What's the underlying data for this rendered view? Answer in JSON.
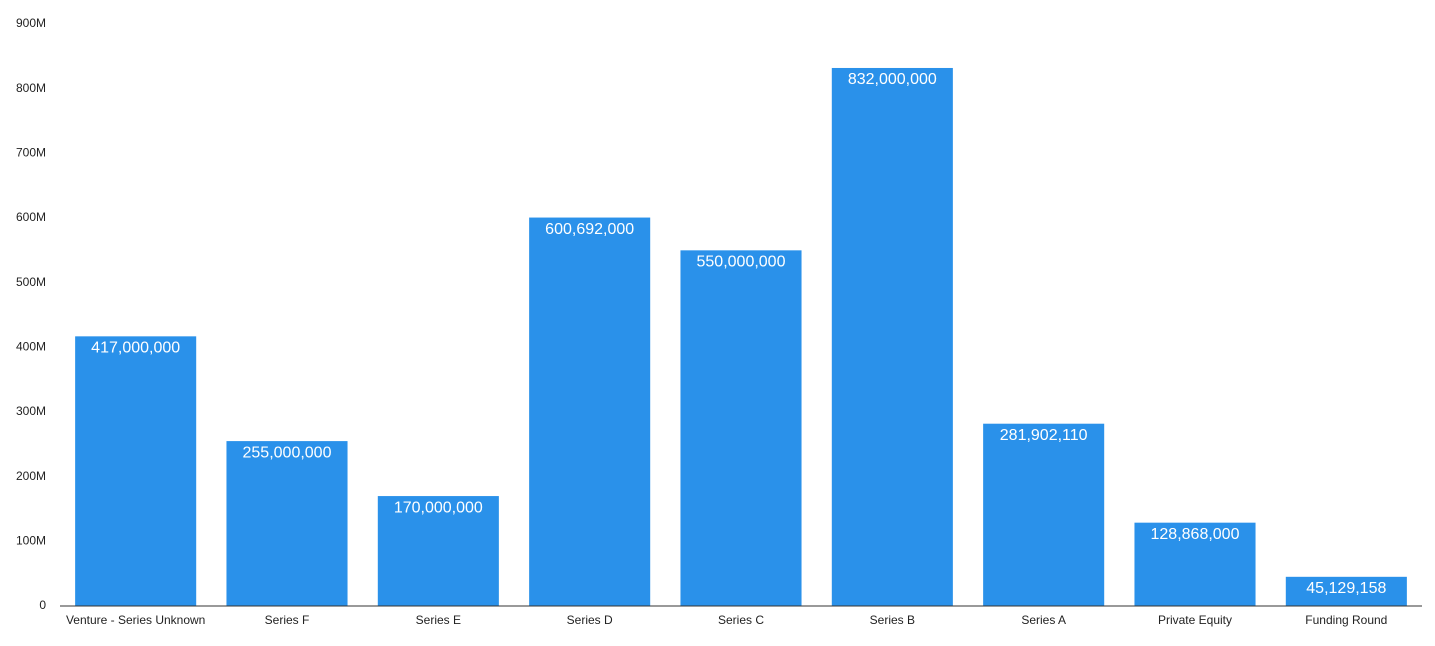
{
  "chart_data": {
    "type": "bar",
    "categories": [
      "Venture - Series Unknown",
      "Series F",
      "Series E",
      "Series D",
      "Series C",
      "Series B",
      "Series A",
      "Private Equity",
      "Funding Round"
    ],
    "values": [
      417000000,
      255000000,
      170000000,
      600692000,
      550000000,
      832000000,
      281902110,
      128868000,
      45129158
    ],
    "value_labels": [
      "417,000,000",
      "255,000,000",
      "170,000,000",
      "600,692,000",
      "550,000,000",
      "832,000,000",
      "281,902,110",
      "128,868,000",
      "45,129,158"
    ],
    "color": "#2a91ea",
    "ylim": [
      0,
      900000000
    ],
    "yticks": [
      0,
      {
        "value": 100000000,
        "label": "100M"
      },
      {
        "value": 200000000,
        "label": "200M"
      },
      {
        "value": 300000000,
        "label": "300M"
      },
      {
        "value": 400000000,
        "label": "400M"
      },
      {
        "value": 500000000,
        "label": "500M"
      },
      {
        "value": 600000000,
        "label": "600M"
      },
      {
        "value": 700000000,
        "label": "700M"
      },
      {
        "value": 800000000,
        "label": "800M"
      },
      {
        "value": 900000000,
        "label": "900M"
      }
    ],
    "grid": false
  }
}
